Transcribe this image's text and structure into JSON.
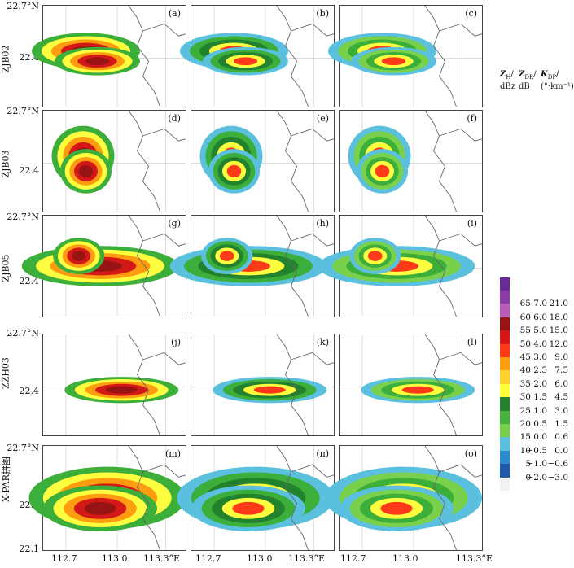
{
  "rows": [
    {
      "label": "ZJB02",
      "panels": [
        "(a)",
        "(b)",
        "(c)"
      ]
    },
    {
      "label": "ZJB03",
      "panels": [
        "(d)",
        "(e)",
        "(f)"
      ]
    },
    {
      "label": "ZJB05",
      "panels": [
        "(g)",
        "(h)",
        "(i)"
      ]
    },
    {
      "label": "ZZH03",
      "panels": [
        "(j)",
        "(k)",
        "(l)"
      ]
    },
    {
      "label": "X-PAR拼图",
      "panels": [
        "(m)",
        "(n)",
        "(o)"
      ]
    }
  ],
  "lat_labels": {
    "top": "22.7°N",
    "mid": "22.4",
    "bottom": "22.1"
  },
  "lon_labels": [
    "112.7",
    "113.0",
    "113.3°E"
  ],
  "colorbar": {
    "headers": {
      "zh": {
        "sym": "Z",
        "sub": "H",
        "unit": "dBz"
      },
      "zdr": {
        "sym": "Z",
        "sub": "DR",
        "unit": "dB"
      },
      "kdp": {
        "sym": "K",
        "sub": "DP",
        "unit": "(°·km⁻¹)"
      }
    },
    "colors": [
      "#f2f2f2",
      "#1e5aa8",
      "#2b8ad0",
      "#5bc0de",
      "#79d04a",
      "#45b23c",
      "#23822e",
      "#ffff40",
      "#ffd030",
      "#ff9c10",
      "#ff3a18",
      "#d41818",
      "#981414",
      "#b85cb8",
      "#8c3ca8",
      "#6a2a98"
    ],
    "ticks": [
      {
        "zh": "0",
        "zdr": "−2.0",
        "kdp": "−3.0"
      },
      {
        "zh": "5",
        "zdr": "−1.0",
        "kdp": "−0.6"
      },
      {
        "zh": "10",
        "zdr": "−0.5",
        "kdp": "0.0"
      },
      {
        "zh": "15",
        "zdr": "0.0",
        "kdp": "0.6"
      },
      {
        "zh": "20",
        "zdr": "0.5",
        "kdp": "1.5"
      },
      {
        "zh": "25",
        "zdr": "1.0",
        "kdp": "3.0"
      },
      {
        "zh": "30",
        "zdr": "1.5",
        "kdp": "4.5"
      },
      {
        "zh": "35",
        "zdr": "2.0",
        "kdp": "6.0"
      },
      {
        "zh": "40",
        "zdr": "2.5",
        "kdp": "7.5"
      },
      {
        "zh": "45",
        "zdr": "3.0",
        "kdp": "9.0"
      },
      {
        "zh": "50",
        "zdr": "4.0",
        "kdp": "12.0"
      },
      {
        "zh": "55",
        "zdr": "5.0",
        "kdp": "15.0"
      },
      {
        "zh": "60",
        "zdr": "6.0",
        "kdp": "18.0"
      },
      {
        "zh": "65",
        "zdr": "7.0",
        "kdp": "21.0"
      }
    ]
  }
}
